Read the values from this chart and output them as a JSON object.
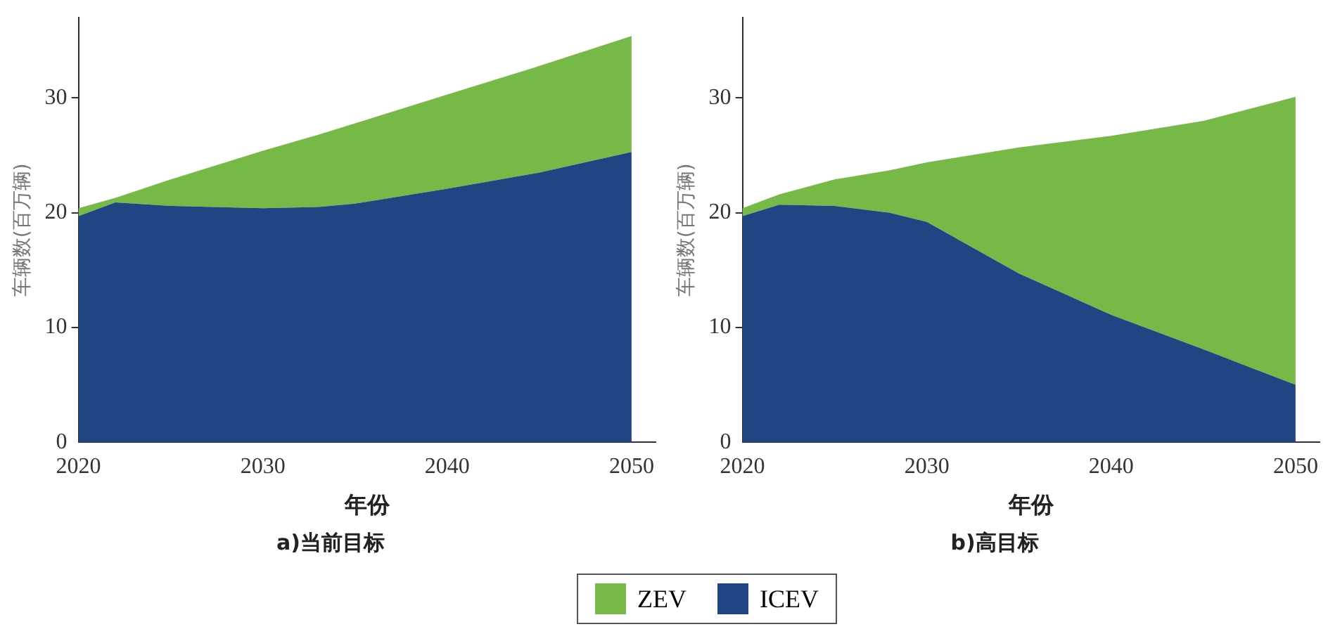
{
  "chart_data": [
    {
      "type": "area",
      "title": "a)当前目标",
      "xlabel": "年份",
      "ylabel": "车辆数(百万辆)",
      "stacked": true,
      "legend": "bottom",
      "grid": false,
      "marker": "none",
      "xlim": [
        2020,
        2051.3
      ],
      "xticks": [
        2020,
        2030,
        2040,
        2050
      ],
      "ylim": [
        0,
        37
      ],
      "yticks": [
        0,
        10,
        20,
        30
      ],
      "series": [
        {
          "name": "ICEV",
          "color": "#1f4582",
          "x": [
            2020,
            2022,
            2025,
            2030,
            2033,
            2035,
            2040,
            2045,
            2050
          ],
          "values": [
            19.7,
            20.9,
            20.6,
            20.4,
            20.5,
            20.8,
            22.1,
            23.5,
            25.3
          ]
        },
        {
          "name": "ZEV",
          "color": "#76b947",
          "x": [
            2020,
            2022,
            2025,
            2030,
            2033,
            2035,
            2040,
            2045,
            2050
          ],
          "values": [
            0.7,
            0.4,
            2.3,
            5.0,
            6.3,
            7.0,
            8.2,
            9.3,
            10.1
          ]
        }
      ]
    },
    {
      "type": "area",
      "title": "b)高目标",
      "xlabel": "年份",
      "ylabel": "车辆数(百万辆)",
      "stacked": true,
      "legend": "bottom",
      "grid": false,
      "marker": "none",
      "xlim": [
        2020,
        2051.3
      ],
      "xticks": [
        2020,
        2030,
        2040,
        2050
      ],
      "ylim": [
        0,
        37
      ],
      "yticks": [
        0,
        10,
        20,
        30
      ],
      "series": [
        {
          "name": "ICEV",
          "color": "#1f4582",
          "x": [
            2020,
            2022,
            2025,
            2028,
            2030,
            2035,
            2040,
            2045,
            2050
          ],
          "values": [
            19.7,
            20.7,
            20.6,
            20.0,
            19.2,
            14.7,
            11.1,
            8.1,
            5.0
          ]
        },
        {
          "name": "ZEV",
          "color": "#76b947",
          "x": [
            2020,
            2022,
            2025,
            2028,
            2030,
            2035,
            2040,
            2045,
            2050
          ],
          "values": [
            0.7,
            0.9,
            2.3,
            3.7,
            5.2,
            11.0,
            15.6,
            19.9,
            25.1
          ]
        }
      ]
    }
  ]
}
